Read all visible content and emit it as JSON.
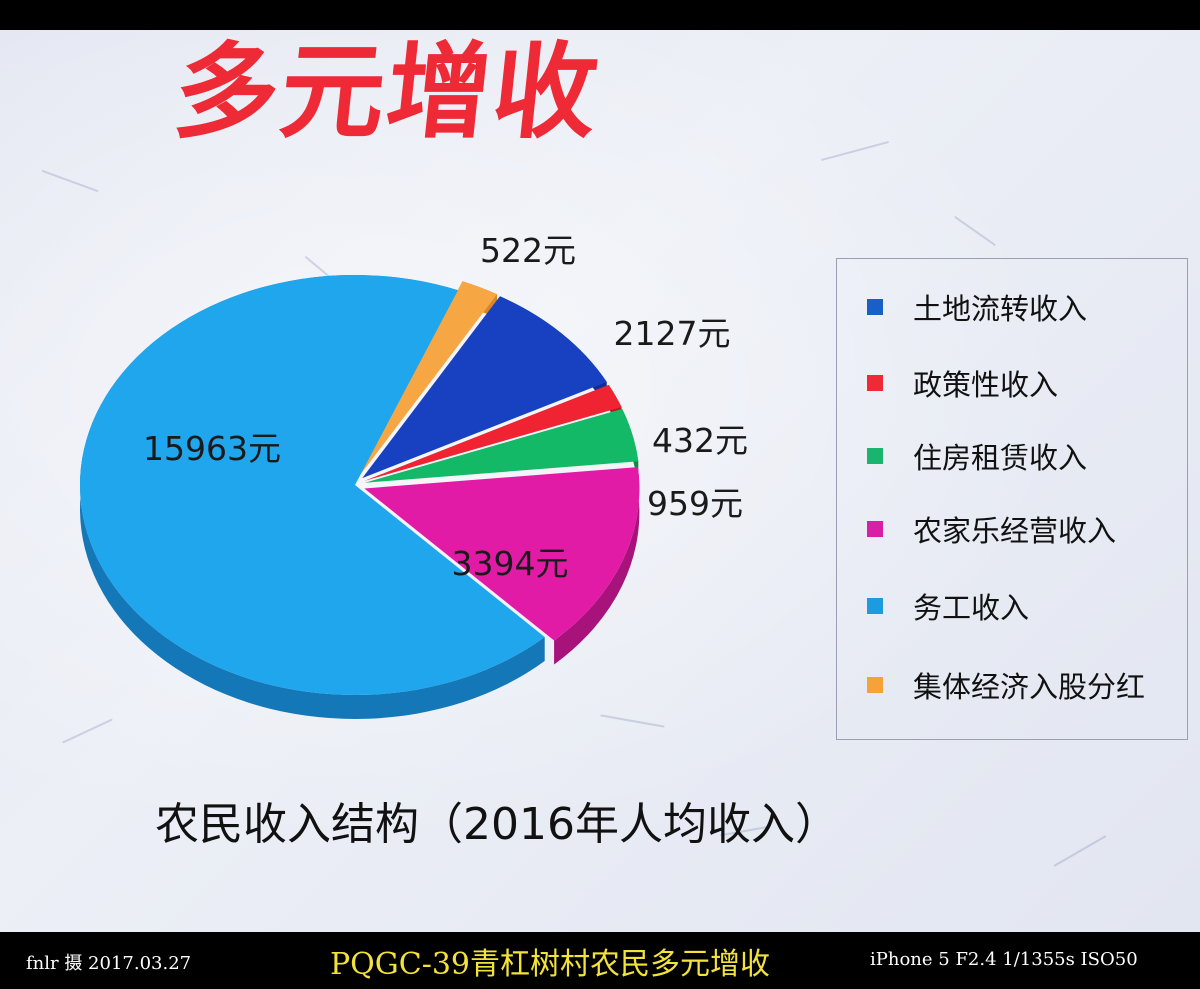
{
  "poster": {
    "title": "多元增收",
    "caption": "农民收入结构（2016年人均收入）"
  },
  "legend": [
    {
      "label": "土地流转收入",
      "color": "#1a5fc8"
    },
    {
      "label": "政策性收入",
      "color": "#ee2a36"
    },
    {
      "label": "住房租赁收入",
      "color": "#19b46e"
    },
    {
      "label": "农家乐经营收入",
      "color": "#d81fa6"
    },
    {
      "label": "务工收入",
      "color": "#1c9be0"
    },
    {
      "label": "集体经济入股分红",
      "color": "#f5a23a"
    }
  ],
  "chart_data": {
    "type": "pie",
    "title": "农民收入结构（2016年人均收入）",
    "unit": "元",
    "slices": [
      {
        "name": "集体经济入股分红",
        "value": 522,
        "label": "522元",
        "color": "#f7a644",
        "side": "#d98726"
      },
      {
        "name": "土地流转收入",
        "value": 2127,
        "label": "2127元",
        "color": "#1841c2",
        "side": "#102f96"
      },
      {
        "name": "政策性收入",
        "value": 432,
        "label": "432元",
        "color": "#ef2331",
        "side": "#b81822"
      },
      {
        "name": "住房租赁收入",
        "value": 959,
        "label": "959元",
        "color": "#14b968",
        "side": "#0c8a4b"
      },
      {
        "name": "农家乐经营收入",
        "value": 3394,
        "label": "3394元",
        "color": "#e21ba6",
        "side": "#a8127b"
      },
      {
        "name": "务工收入",
        "value": 15963,
        "label": "15963元",
        "color": "#20a6ec",
        "side": "#1478b8"
      }
    ],
    "legend_position": "right"
  },
  "footer": {
    "left": "fnlr 摄 2017.03.27",
    "center": "PQGC-39青杠树村农民多元增收",
    "right": "iPhone 5 F2.4 1/1355s ISO50"
  }
}
